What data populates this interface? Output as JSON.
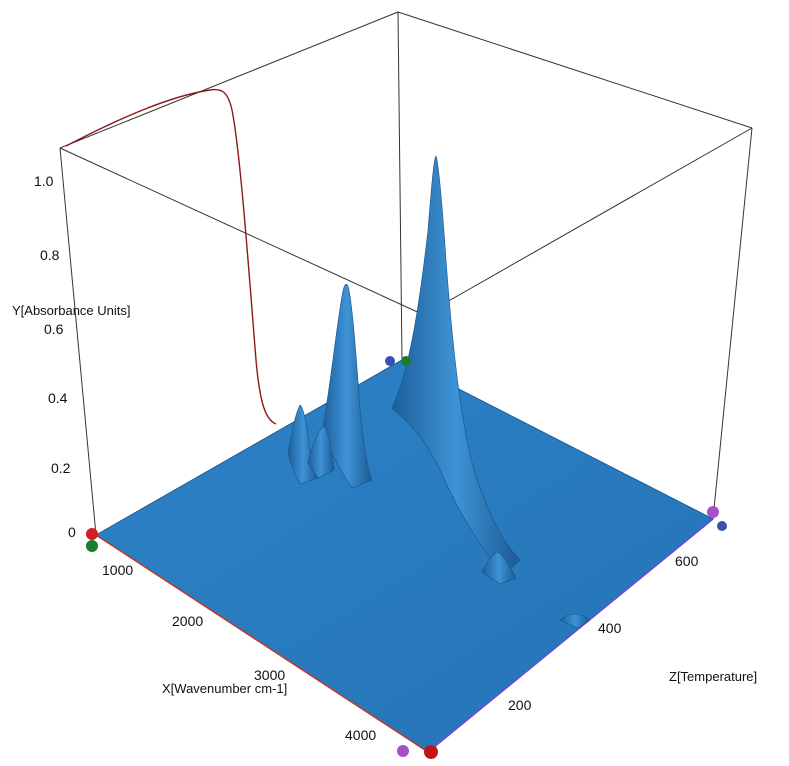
{
  "chart_data": {
    "type": "surface3d",
    "title": "",
    "axes": {
      "x": {
        "label": "X[Wavenumber cm-1]",
        "range": [
          500,
          4400
        ],
        "ticks": [
          "1000",
          "2000",
          "3000",
          "4000"
        ]
      },
      "y": {
        "label": "Y[Absorbance Units]",
        "range": [
          0,
          1.1
        ],
        "ticks": [
          "0",
          "0.2",
          "0.4",
          "0.6",
          "0.8",
          "1.0"
        ]
      },
      "z": {
        "label": "Z[Temperature]",
        "range": [
          0,
          700
        ],
        "ticks": [
          "200",
          "400",
          "600"
        ]
      }
    },
    "surface_color": "#2a7bbf",
    "trace_color": "#8b1a1a",
    "peaks": [
      {
        "wavenumber": 1080,
        "absorbance": 1.0,
        "z_start": 250
      },
      {
        "wavenumber": 1700,
        "absorbance": 0.68,
        "z_start": 250
      },
      {
        "wavenumber": 2000,
        "absorbance": 0.3,
        "z_start": 300
      },
      {
        "wavenumber": 2200,
        "absorbance": 0.2,
        "z_start": 300
      },
      {
        "wavenumber": 3000,
        "absorbance": 0.12,
        "z_start": 200
      }
    ],
    "back_trace": {
      "description": "sigmoid curve on back wall",
      "high": 1.05,
      "low": 0.05
    }
  }
}
